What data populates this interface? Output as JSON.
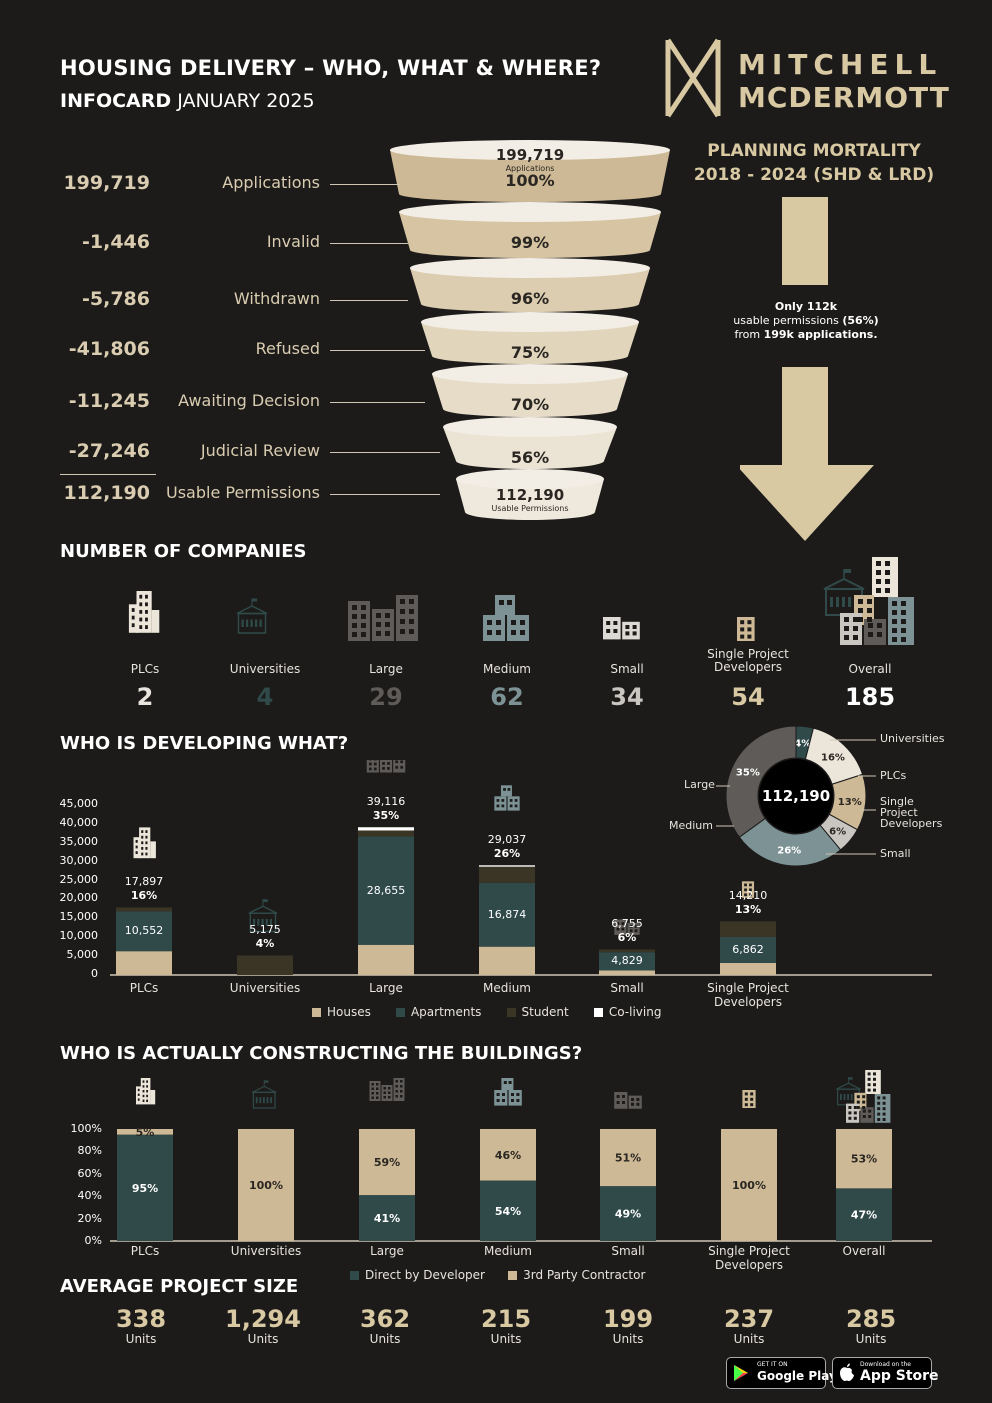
{
  "header": {
    "title": "HOUSING DELIVERY – WHO, WHAT & WHERE?",
    "subtitle_bold": "INFOCARD",
    "subtitle_rest": "JANUARY 2025"
  },
  "logo": {
    "line1": "MITCHELL",
    "line2": "MCDERMOTT"
  },
  "funnel": {
    "rows": [
      {
        "value": "199,719",
        "label": "Applications",
        "pct": "100%"
      },
      {
        "value": "-1,446",
        "label": "Invalid",
        "pct": "99%"
      },
      {
        "value": "-5,786",
        "label": "Withdrawn",
        "pct": "96%"
      },
      {
        "value": "-41,806",
        "label": "Refused",
        "pct": "75%"
      },
      {
        "value": "-11,245",
        "label": "Awaiting Decision",
        "pct": "70%"
      },
      {
        "value": "-27,246",
        "label": "Judicial Review",
        "pct": "56%"
      },
      {
        "value": "112,190",
        "label": "Usable Permissions",
        "pct": ""
      }
    ],
    "top_value": "199,719",
    "top_caption": "Applications",
    "bottom_value": "112,190",
    "bottom_caption": "Usable Permissions"
  },
  "mortality": {
    "title_line1": "PLANNING MORTALITY",
    "title_line2": "2018 - 2024 (SHD & LRD)",
    "note_line1": "Only 112k",
    "note_line2a": "usable permissions ",
    "note_line2b": "(56%)",
    "note_line3a": "from ",
    "note_line3b": "199k applications."
  },
  "companies": {
    "section_title": "NUMBER OF COMPANIES",
    "items": [
      {
        "label": "PLCs",
        "count": "2",
        "color": "#e8e4de"
      },
      {
        "label": "Universities",
        "count": "4",
        "color": "#2f4a49"
      },
      {
        "label": "Large",
        "count": "29",
        "color": "#5e5b58"
      },
      {
        "label": "Medium",
        "count": "62",
        "color": "#7c9294"
      },
      {
        "label": "Small",
        "count": "34",
        "color": "#c9c6c2"
      },
      {
        "label": "Single Project Developers",
        "count": "54",
        "color": "#d9c9a3"
      },
      {
        "label": "Overall",
        "count": "185",
        "color": "#ffffff"
      }
    ]
  },
  "developing": {
    "section_title": "WHO IS DEVELOPING WHAT?",
    "legend": [
      "Houses",
      "Apartments",
      "Student",
      "Co-living"
    ],
    "yticks": [
      "45,000",
      "40,000",
      "35,000",
      "30,000",
      "25,000",
      "20,000",
      "15,000",
      "10,000",
      "5,000",
      "0"
    ],
    "donut_center": "112,190",
    "donut_labels": {
      "universities": "Universities",
      "plcs": "PLCs",
      "single": "Single Project Developers",
      "small": "Small",
      "large": "Large",
      "medium": "Medium"
    },
    "donut_pcts": {
      "universities": "4%",
      "plcs": "16%",
      "single": "13%",
      "small": "6%",
      "large": "35%",
      "medium": "26%"
    }
  },
  "constructing": {
    "section_title": "WHO IS ACTUALLY CONSTRUCTING THE BUILDINGS?",
    "legend": [
      "Direct by Developer",
      "3rd Party Contractor"
    ],
    "yticks": [
      "100%",
      "80%",
      "60%",
      "40%",
      "20%",
      "0%"
    ]
  },
  "average": {
    "section_title": "AVERAGE PROJECT SIZE",
    "unit": "Units",
    "items": [
      "338",
      "1,294",
      "362",
      "215",
      "199",
      "237",
      "285"
    ]
  },
  "stores": {
    "google_small": "GET IT ON",
    "google_big": "Google Play",
    "apple_small": "Download on the",
    "apple_big": "App Store"
  },
  "chart_data": [
    {
      "type": "bar",
      "title": "WHO IS DEVELOPING WHAT?",
      "categories": [
        "PLCs",
        "Universities",
        "Large",
        "Medium",
        "Small",
        "Single Project Developers"
      ],
      "totals": [
        17897,
        5175,
        39116,
        29037,
        6755,
        14210
      ],
      "total_labels": [
        "17,897",
        "5,175",
        "39,116",
        "29,037",
        "6,755",
        "14,210"
      ],
      "share_labels": [
        "16%",
        "4%",
        "35%",
        "26%",
        "6%",
        "13%"
      ],
      "apartment_labels": [
        "10,552",
        "",
        "28,655",
        "16,874",
        "4,829",
        "6,862"
      ],
      "series": [
        {
          "name": "Houses",
          "color": "#cdb995",
          "values": [
            6300,
            0,
            8000,
            7500,
            1200,
            3200
          ]
        },
        {
          "name": "Apartments",
          "color": "#2f4a49",
          "values": [
            10552,
            0,
            28655,
            16874,
            4829,
            6862
          ]
        },
        {
          "name": "Student",
          "color": "#3b3526",
          "values": [
            1045,
            5175,
            1600,
            4300,
            726,
            4148
          ]
        },
        {
          "name": "Co-living",
          "color": "#ffffff",
          "values": [
            0,
            0,
            861,
            363,
            0,
            0
          ]
        }
      ],
      "ylim": [
        0,
        45000
      ],
      "stacked": true
    },
    {
      "type": "pie",
      "center_label": "112,190",
      "categories": [
        "Universities",
        "PLCs",
        "Single Project Developers",
        "Small",
        "Medium",
        "Large"
      ],
      "values": [
        4,
        16,
        13,
        6,
        26,
        35
      ],
      "colors": [
        "#2f4a49",
        "#ece6da",
        "#cdb995",
        "#c9c6c2",
        "#7c9294",
        "#5e5b58"
      ]
    },
    {
      "type": "bar",
      "title": "WHO IS ACTUALLY CONSTRUCTING THE BUILDINGS?",
      "categories": [
        "PLCs",
        "Universities",
        "Large",
        "Medium",
        "Small",
        "Single Project Developers",
        "Overall"
      ],
      "series": [
        {
          "name": "Direct by Developer",
          "color": "#2f4a49",
          "values": [
            95,
            0,
            41,
            54,
            49,
            0,
            47
          ]
        },
        {
          "name": "3rd Party Contractor",
          "color": "#cdb995",
          "values": [
            5,
            100,
            59,
            46,
            51,
            100,
            53
          ]
        }
      ],
      "ylim": [
        0,
        100
      ],
      "stacked": true
    }
  ]
}
